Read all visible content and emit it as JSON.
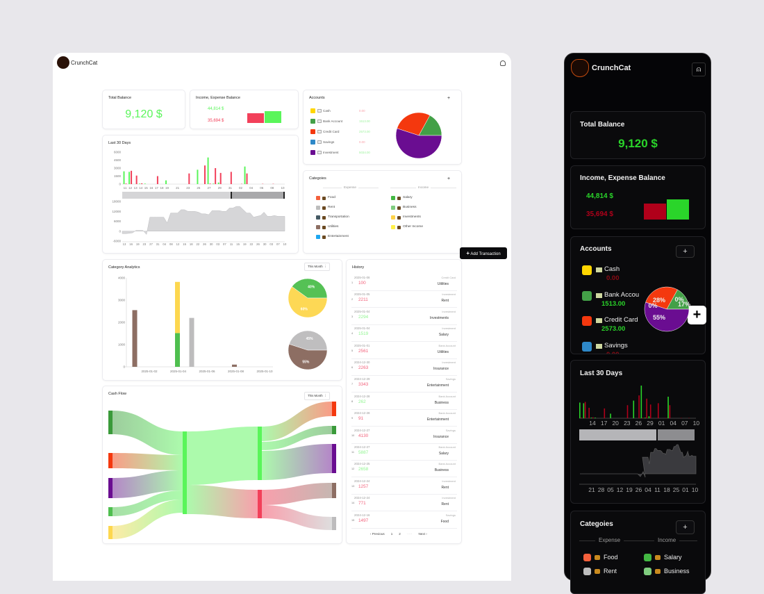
{
  "app": {
    "name": "CrunchCat"
  },
  "colors": {
    "income": "#5af55a",
    "expense": "#f2405a",
    "income_dark": "#2ad52a",
    "expense_dark": "#b0001a",
    "balance_area": "#d6d6d8"
  },
  "total_balance": {
    "title": "Total Balance",
    "value": "9,120 $"
  },
  "income_expense": {
    "title": "Income, Expense Balance",
    "income": "44,814 $",
    "expense": "35,694 $"
  },
  "accounts": {
    "title": "Accounts",
    "add_label": "+",
    "items": [
      {
        "name": "Cash",
        "value": "0.00",
        "color": "#ffd600",
        "icon": "money-icon",
        "share": 0
      },
      {
        "name": "Bank Account",
        "value": "1513.00",
        "color": "#43a047",
        "icon": "bank-icon",
        "share": 17
      },
      {
        "name": "Credit Card",
        "value": "2573.00",
        "color": "#f4380e",
        "icon": "credit-card-icon",
        "share": 28
      },
      {
        "name": "Savings",
        "value": "0.00",
        "color": "#2e88c8",
        "icon": "money-bag-icon",
        "share": 0
      },
      {
        "name": "Investment",
        "value": "5034.00",
        "color": "#6a0d91",
        "icon": "chart-icon",
        "share": 55
      }
    ],
    "mobile_pie_labels": [
      "0%",
      "17%",
      "28%",
      "0%",
      "55%"
    ]
  },
  "categories": {
    "title": "Categoies",
    "add_label": "+",
    "expense_label": "Expense",
    "income_label": "Income",
    "expense": [
      {
        "name": "Food",
        "color": "#f4603c",
        "icon": "burger-icon"
      },
      {
        "name": "Rent",
        "color": "#bdbdbd",
        "icon": "house-icon"
      },
      {
        "name": "Transportation",
        "color": "#455a64",
        "icon": "car-icon"
      },
      {
        "name": "Utilities",
        "color": "#8d6e63",
        "icon": "bulb-icon"
      },
      {
        "name": "Entertainment",
        "color": "#1ea7f0",
        "icon": "gamepad-icon"
      }
    ],
    "income": [
      {
        "name": "Salary",
        "color": "#43b843",
        "icon": "briefcase-icon"
      },
      {
        "name": "Business",
        "color": "#7fcc7f",
        "icon": "building-icon"
      },
      {
        "name": "Investments",
        "color": "#fdd249",
        "icon": "chart-icon"
      },
      {
        "name": "Other Income",
        "color": "#fff04a",
        "icon": "gift-icon"
      }
    ]
  },
  "add_transaction": {
    "label": "Add Transaction",
    "icon": "plus-icon"
  },
  "last30": {
    "title": "Last 30 Days"
  },
  "category_analytics": {
    "title": "Category Analytics",
    "period": "This Month"
  },
  "cash_flow": {
    "title": "Cash Flow",
    "period": "This Month"
  },
  "history": {
    "title": "History",
    "rows": [
      {
        "n": "1",
        "date": "2025-01-08",
        "account": "Credit Card",
        "amount": "100",
        "category": "Utilities",
        "type": "expense"
      },
      {
        "n": "2",
        "date": "2025-01-05",
        "account": "Investment",
        "amount": "2211",
        "category": "Rent",
        "type": "expense"
      },
      {
        "n": "3",
        "date": "2025-01-04",
        "account": "Investment",
        "amount": "2294",
        "category": "Investments",
        "type": "income"
      },
      {
        "n": "4",
        "date": "2025-01-04",
        "account": "Investment",
        "amount": "1519",
        "category": "Salary",
        "type": "income"
      },
      {
        "n": "5",
        "date": "2025-01-01",
        "account": "Bank Account",
        "amount": "2561",
        "category": "Utilities",
        "type": "expense"
      },
      {
        "n": "6",
        "date": "2024-12-30",
        "account": "Investment",
        "amount": "2263",
        "category": "Insurance",
        "type": "expense"
      },
      {
        "n": "7",
        "date": "2024-12-29",
        "account": "Savings",
        "amount": "3343",
        "category": "Entertainment",
        "type": "expense"
      },
      {
        "n": "8",
        "date": "2024-12-28",
        "account": "Bank Account",
        "amount": "262",
        "category": "Business",
        "type": "income"
      },
      {
        "n": "9",
        "date": "2024-12-28",
        "account": "Bank Account",
        "amount": "91",
        "category": "Entertainment",
        "type": "expense"
      },
      {
        "n": "10",
        "date": "2024-12-27",
        "account": "Savings",
        "amount": "4130",
        "category": "Insurance",
        "type": "expense"
      },
      {
        "n": "11",
        "date": "2024-12-27",
        "account": "Bank Account",
        "amount": "5887",
        "category": "Salary",
        "type": "income"
      },
      {
        "n": "12",
        "date": "2024-12-25",
        "account": "Bank Account",
        "amount": "2658",
        "category": "Business",
        "type": "income"
      },
      {
        "n": "13",
        "date": "2024-12-24",
        "account": "Investment",
        "amount": "1257",
        "category": "Rent",
        "type": "expense"
      },
      {
        "n": "14",
        "date": "2024-12-24",
        "account": "Investment",
        "amount": "771",
        "category": "Rent",
        "type": "expense"
      },
      {
        "n": "15",
        "date": "2024-12-16",
        "account": "Savings",
        "amount": "1497",
        "category": "Food",
        "type": "expense"
      }
    ],
    "pagination": {
      "prev": "‹ Previous",
      "pages": [
        "1",
        "2"
      ],
      "ellipsis": "·····",
      "next": "Next ›"
    }
  },
  "chart_data": [
    {
      "type": "bar",
      "title": "Last 30 Days",
      "days": [
        "11",
        "12",
        "13",
        "14",
        "15",
        "16",
        "17",
        "18",
        "19",
        "20",
        "21",
        "22",
        "23",
        "24",
        "25",
        "26",
        "27",
        "28",
        "29",
        "30",
        "31",
        "01",
        "02",
        "03",
        "04",
        "05",
        "06",
        "07",
        "08",
        "09",
        "10"
      ],
      "tick_labels": [
        "11",
        "12",
        "13",
        "14",
        "15",
        "16",
        "17",
        "18",
        "19",
        "21",
        "23",
        "25",
        "27",
        "29",
        "31",
        "02",
        "04",
        "06",
        "08",
        "10"
      ],
      "series": [
        {
          "name": "income",
          "values": [
            2400,
            2300,
            0,
            100,
            100,
            0,
            0,
            0,
            700,
            0,
            0,
            0,
            0,
            0,
            2700,
            0,
            5000,
            100,
            300,
            0,
            0,
            0,
            0,
            3300,
            0,
            0,
            0,
            0,
            0,
            0,
            0
          ]
        },
        {
          "name": "expense",
          "values": [
            100,
            2500,
            1600,
            150,
            0,
            0,
            1500,
            0,
            0,
            0,
            0,
            0,
            2000,
            0,
            0,
            3500,
            100,
            3000,
            2100,
            0,
            2300,
            0,
            50,
            2000,
            0,
            0,
            50,
            0,
            50,
            0,
            0
          ]
        }
      ],
      "yticks": [
        0,
        1500,
        3000,
        4500,
        6000
      ],
      "ylim": [
        0,
        6000
      ],
      "mobile_tick_labels": [
        "14",
        "17",
        "20",
        "23",
        "26",
        "29",
        "01",
        "04",
        "07",
        "10"
      ]
    },
    {
      "type": "area",
      "yticks": [
        -6000,
        0,
        6000,
        12000,
        18000
      ],
      "ylim": [
        -6000,
        18000
      ],
      "tick_labels": [
        "13",
        "16",
        "19",
        "23",
        "27",
        "31",
        "04",
        "08",
        "12",
        "15",
        "18",
        "22",
        "26",
        "30",
        "03",
        "07",
        "11",
        "15",
        "19",
        "22",
        "26",
        "30",
        "03",
        "07",
        "10"
      ],
      "mobile_tick_labels": [
        "21",
        "28",
        "05",
        "12",
        "19",
        "26",
        "04",
        "11",
        "18",
        "25",
        "01",
        "10"
      ],
      "values": [
        -1500,
        -1500,
        -1300,
        -1000,
        500,
        500,
        400,
        -2000,
        8500,
        8500,
        8500,
        8500,
        8500,
        5000,
        11000,
        11000,
        11000,
        13000,
        13000,
        12000,
        12000,
        12000,
        11500,
        10500,
        10500,
        10000,
        12500,
        12500,
        12500,
        12000,
        12000,
        14000,
        14000,
        15000,
        15000,
        13000,
        11000,
        11000,
        8500,
        9000,
        9500,
        11500,
        9000,
        9000,
        9500,
        9000,
        9000,
        9000
      ]
    },
    {
      "type": "bar",
      "title": "Category Analytics",
      "xticks": [
        "2025-01-02",
        "2025-01-04",
        "2025-01-06",
        "2025-01-08",
        "2025-01-10"
      ],
      "yticks": [
        0,
        1000,
        2000,
        3000,
        4000
      ],
      "ylim": [
        0,
        4000
      ],
      "bars": [
        {
          "day": 1,
          "stack": [
            {
              "category": "Utilities",
              "value": 2550,
              "color": "#8d6e63"
            }
          ]
        },
        {
          "day": 4,
          "stack": [
            {
              "category": "Salary",
              "value": 1520,
              "color": "#4fbf4f"
            },
            {
              "category": "Investments",
              "value": 2300,
              "color": "#fdd74f"
            }
          ]
        },
        {
          "day": 5,
          "stack": [
            {
              "category": "Rent",
              "value": 2200,
              "color": "#bdbcbd"
            }
          ]
        },
        {
          "day": 8,
          "stack": [
            {
              "category": "Utilities",
              "value": 100,
              "color": "#8d6e63"
            }
          ]
        }
      ]
    },
    {
      "type": "pie",
      "slices": [
        {
          "label": "40%",
          "value": 40,
          "color": "#55c155"
        },
        {
          "label": "60%",
          "value": 60,
          "color": "#fdd855"
        }
      ]
    },
    {
      "type": "pie",
      "slices": [
        {
          "label": "45%",
          "value": 45,
          "color": "#bfbebf"
        },
        {
          "label": "55%",
          "value": 55,
          "color": "#8d6e63"
        }
      ]
    }
  ]
}
